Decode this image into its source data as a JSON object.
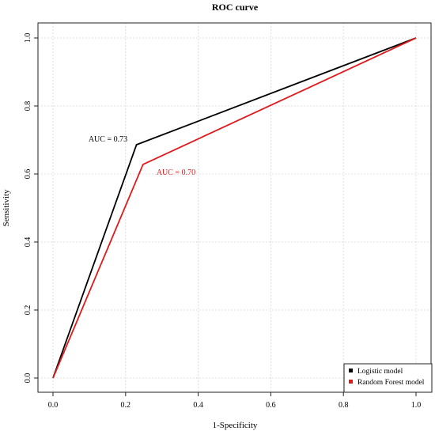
{
  "chart_data": {
    "type": "line",
    "title": "ROC curve",
    "xlabel": "1-Specificity",
    "ylabel": "Sensitivity",
    "xlim": [
      0,
      1
    ],
    "ylim": [
      0,
      1
    ],
    "x_ticks": [
      "0.0",
      "0.2",
      "0.4",
      "0.6",
      "0.8",
      "1.0"
    ],
    "y_ticks": [
      "0.0",
      "0.2",
      "0.4",
      "0.6",
      "0.8",
      "1.0"
    ],
    "grid": true,
    "legend_position": "bottom-right",
    "series": [
      {
        "name": "Logistic model",
        "color": "#000000",
        "x": [
          0,
          0.23,
          1
        ],
        "y": [
          0,
          0.686,
          1
        ],
        "annotation": {
          "text": "AUC = 0.73",
          "x": 0.205,
          "y": 0.695,
          "anchor": "end"
        }
      },
      {
        "name": "Random Forest model",
        "color": "#e0191b",
        "x": [
          0,
          0.248,
          1
        ],
        "y": [
          0,
          0.628,
          1
        ],
        "annotation": {
          "text": "AUC = 0.70",
          "x": 0.285,
          "y": 0.598,
          "anchor": "start"
        }
      }
    ]
  }
}
